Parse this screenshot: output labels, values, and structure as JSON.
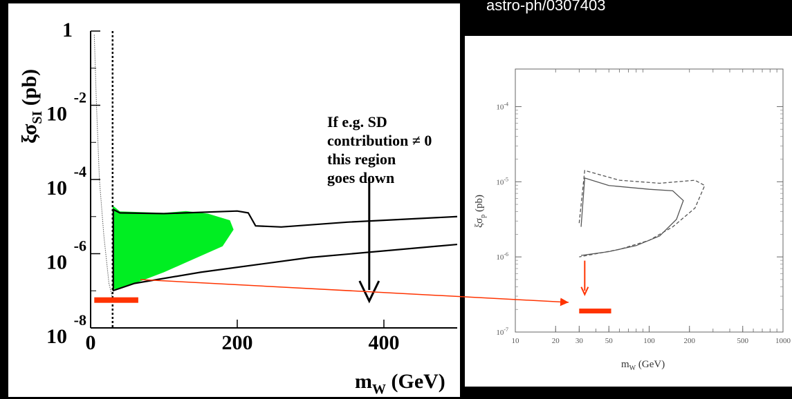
{
  "header": {
    "reference": "astro-ph/0307403"
  },
  "chart_data": [
    {
      "type": "area",
      "xlabel": "m_W (GeV)",
      "ylabel": "ξσ_SI (pb)",
      "xlim": [
        0,
        500
      ],
      "ylim": [
        -8,
        0
      ],
      "y_log": true,
      "x_ticks": [
        "0",
        "200",
        "400"
      ],
      "y_ticks": [
        {
          "mantissa": "1",
          "exponent": ""
        },
        {
          "mantissa": "10",
          "exponent": "-2"
        },
        {
          "mantissa": "10",
          "exponent": "-4"
        },
        {
          "mantissa": "10",
          "exponent": "-6"
        },
        {
          "mantissa": "10",
          "exponent": "-8"
        }
      ],
      "vertical_line_x": 30,
      "annotation": {
        "lines": [
          "If e.g. SD",
          "contribution ≠ 0",
          "this region",
          "goes down"
        ],
        "arrow_x": 380
      },
      "regions": [
        {
          "id": "contour",
          "upper": [
            [
              30,
              -4.8
            ],
            [
              40,
              -4.9
            ],
            [
              100,
              -4.92
            ],
            [
              200,
              -4.85
            ],
            [
              215,
              -4.9
            ],
            [
              225,
              -5.25
            ],
            [
              260,
              -5.28
            ],
            [
              350,
              -5.15
            ],
            [
              500,
              -5.0
            ]
          ],
          "lower": [
            [
              30,
              -7.0
            ],
            [
              60,
              -6.8
            ],
            [
              150,
              -6.5
            ],
            [
              300,
              -6.1
            ],
            [
              500,
              -5.75
            ]
          ]
        },
        {
          "id": "green-fill",
          "upper": [
            [
              30,
              -4.7
            ],
            [
              40,
              -4.86
            ],
            [
              100,
              -4.9
            ],
            [
              130,
              -4.85
            ],
            [
              160,
              -4.92
            ],
            [
              190,
              -5.1
            ],
            [
              195,
              -5.35
            ]
          ],
          "lower": [
            [
              195,
              -5.35
            ],
            [
              180,
              -5.8
            ],
            [
              100,
              -6.5
            ],
            [
              40,
              -6.95
            ],
            [
              30,
              -6.95
            ]
          ]
        },
        {
          "id": "dotted-limit",
          "curve": [
            [
              5,
              -0.1
            ],
            [
              8,
              -2.0
            ],
            [
              12,
              -4.0
            ],
            [
              18,
              -5.5
            ],
            [
              25,
              -6.8
            ],
            [
              30,
              -7.2
            ]
          ]
        }
      ],
      "red_bar": {
        "x": [
          5,
          65
        ],
        "y": -7.25
      },
      "colors": {
        "fill": "#00ee22",
        "curve": "#000000",
        "red": "#ff3300"
      }
    },
    {
      "type": "line",
      "xlabel": "m_W (GeV)",
      "ylabel": "ξσ_p (pb)",
      "xlim": [
        10,
        1000
      ],
      "ylim": [
        -7,
        -3.5
      ],
      "x_log": true,
      "y_log": true,
      "x_ticks": [
        "10",
        "20",
        "30",
        "50",
        "100",
        "200",
        "500",
        "1000"
      ],
      "y_ticks": [
        "10^-4",
        "10^-5",
        "10^-6",
        "10^-7"
      ],
      "series": [
        {
          "style": "solid",
          "points": [
            [
              31,
              -5.6
            ],
            [
              33,
              -4.95
            ],
            [
              50,
              -5.05
            ],
            [
              100,
              -5.1
            ],
            [
              150,
              -5.12
            ],
            [
              180,
              -5.25
            ],
            [
              160,
              -5.5
            ],
            [
              120,
              -5.72
            ],
            [
              80,
              -5.85
            ],
            [
              50,
              -5.93
            ],
            [
              31,
              -5.98
            ]
          ]
        },
        {
          "style": "dashed",
          "points": [
            [
              30,
              -5.55
            ],
            [
              33,
              -4.85
            ],
            [
              60,
              -4.98
            ],
            [
              120,
              -5.02
            ],
            [
              220,
              -4.98
            ],
            [
              260,
              -5.05
            ],
            [
              220,
              -5.35
            ],
            [
              150,
              -5.6
            ],
            [
              100,
              -5.78
            ],
            [
              60,
              -5.9
            ],
            [
              30,
              -6.0
            ]
          ]
        }
      ],
      "red_bar": {
        "x": [
          30,
          52
        ],
        "y": -6.72
      },
      "red_arrow_x": 33
    }
  ]
}
